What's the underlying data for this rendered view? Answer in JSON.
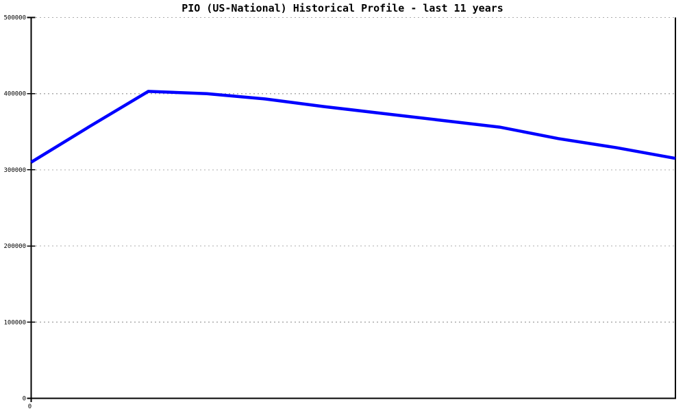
{
  "chart_data": {
    "type": "line",
    "title": "PIO (US-National) Historical Profile - last 11 years",
    "x": [
      0,
      1,
      2,
      3,
      4,
      5,
      6,
      7,
      8,
      9,
      10,
      11
    ],
    "values": [
      310000,
      357000,
      403000,
      400000,
      393000,
      383000,
      374000,
      365000,
      356000,
      341000,
      329000,
      315000
    ],
    "series_name": "PIO (US-National)",
    "xlabel": "",
    "ylabel": "",
    "ylim": [
      0,
      500000
    ],
    "yticks": [
      0,
      100000,
      200000,
      300000,
      400000,
      500000
    ],
    "ytick_labels": [
      "0",
      "100000",
      "200000",
      "300000",
      "400000",
      "500000"
    ],
    "xtick_labels": [
      "0"
    ],
    "grid": "horizontal dotted",
    "legend": "none",
    "colors": {
      "line": "#0000ff",
      "grid": "#ababab",
      "axis": "#000000",
      "title": "#000000",
      "background": "#ffffff"
    }
  }
}
